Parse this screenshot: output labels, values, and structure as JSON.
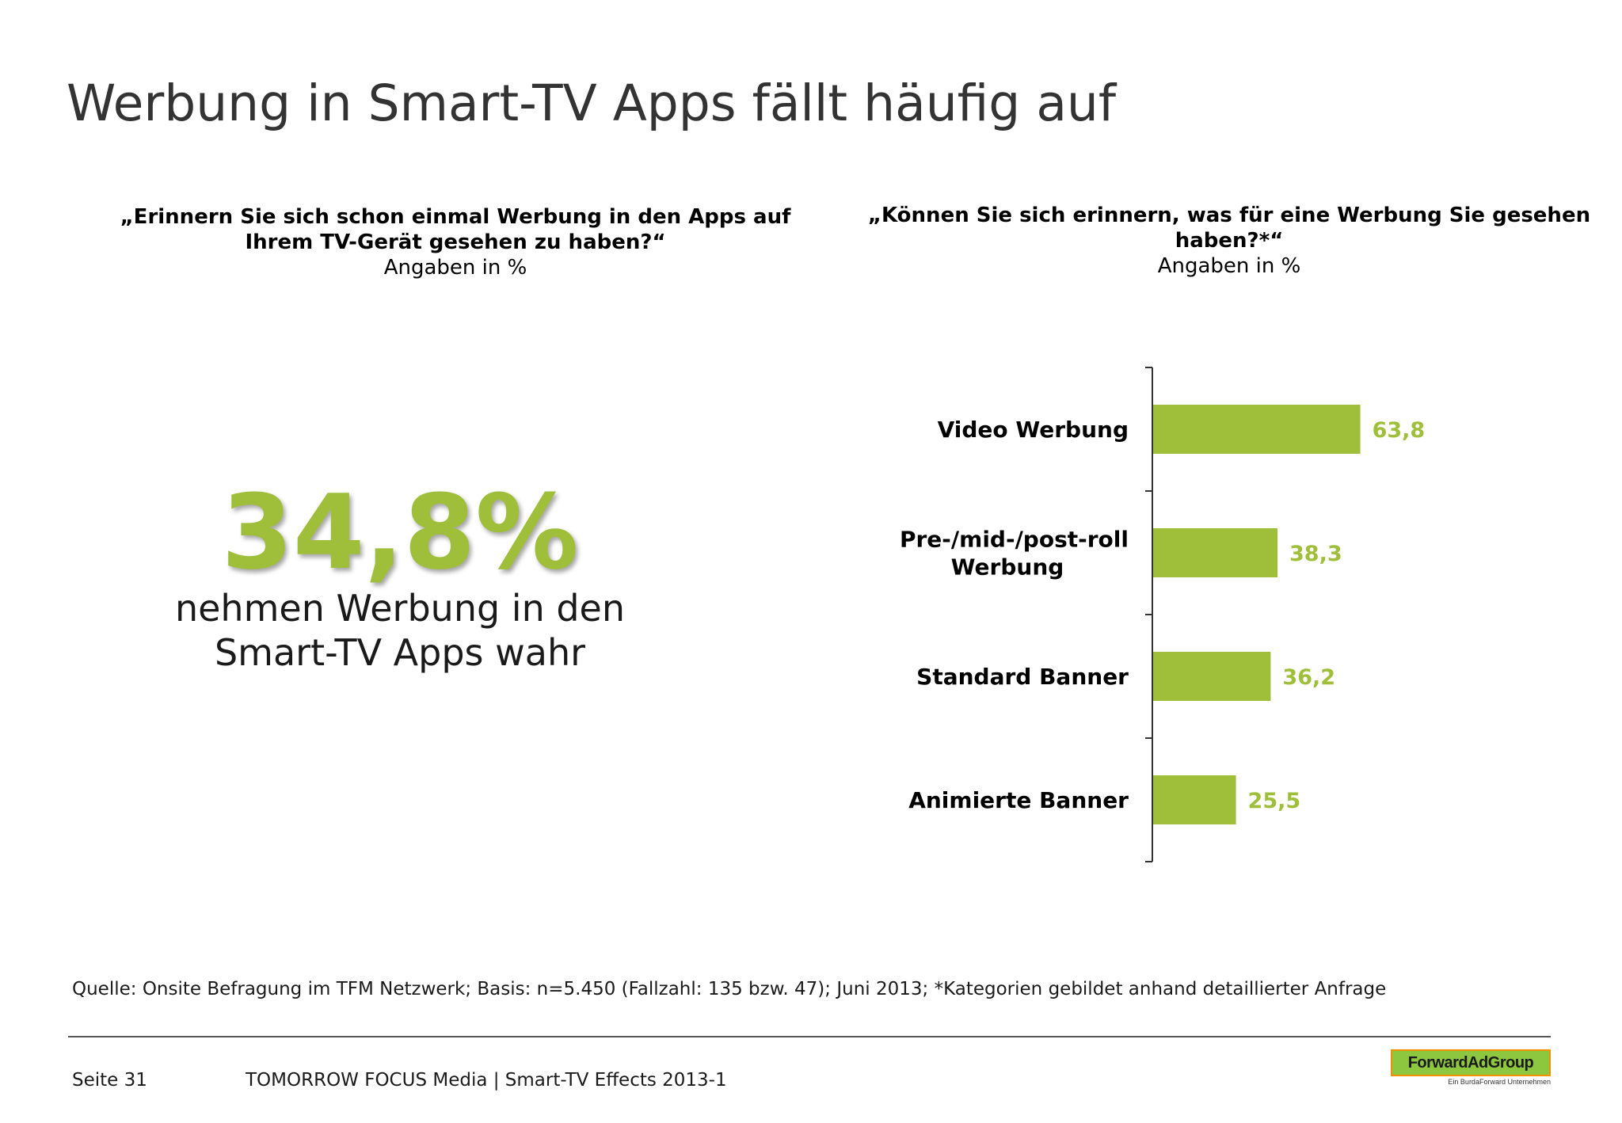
{
  "page": {
    "title": "Werbung in Smart-TV Apps fällt häufig auf",
    "source": "Quelle: Onsite Befragung im TFM Netzwerk; Basis: n=5.450 (Fallzahl: 135 bzw. 47); Juni 2013; *Kategorien gebildet anhand detaillierter Anfrage",
    "footer_page": "Seite 31",
    "footer_brand": "TOMORROW FOCUS Media  |  Smart-TV Effects 2013-1"
  },
  "left": {
    "question": "„Erinnern Sie sich schon einmal Werbung in den Apps auf Ihrem TV-Gerät gesehen zu haben?“",
    "unit_note": "Angaben in %",
    "big_value": "34,8%",
    "caption": "nehmen Werbung in den Smart-TV Apps wahr"
  },
  "right": {
    "question": "„Können Sie sich erinnern, was für eine Werbung Sie gesehen haben?*“",
    "unit_note": "Angaben in %"
  },
  "logo": {
    "name": "ForwardAdGroup",
    "tagline": "Ein BurdaForward Unternehmen"
  },
  "colors": {
    "accent": "#9fbf3b",
    "bar": "#9fbf3b",
    "title": "#333333",
    "axis": "#333333"
  },
  "chart_data": {
    "type": "bar",
    "orientation": "horizontal",
    "title": "",
    "xlabel": "",
    "ylabel": "",
    "categories": [
      [
        "Video Werbung"
      ],
      [
        "Pre-/mid-/post-roll",
        "Werbung"
      ],
      [
        "Standard Banner"
      ],
      [
        "Animierte Banner"
      ]
    ],
    "values": [
      63.8,
      38.3,
      36.2,
      25.5
    ],
    "value_labels": [
      "63,8",
      "38,3",
      "36,2",
      "25,5"
    ],
    "xlim": [
      0,
      100
    ],
    "grid": false,
    "legend": "none"
  }
}
